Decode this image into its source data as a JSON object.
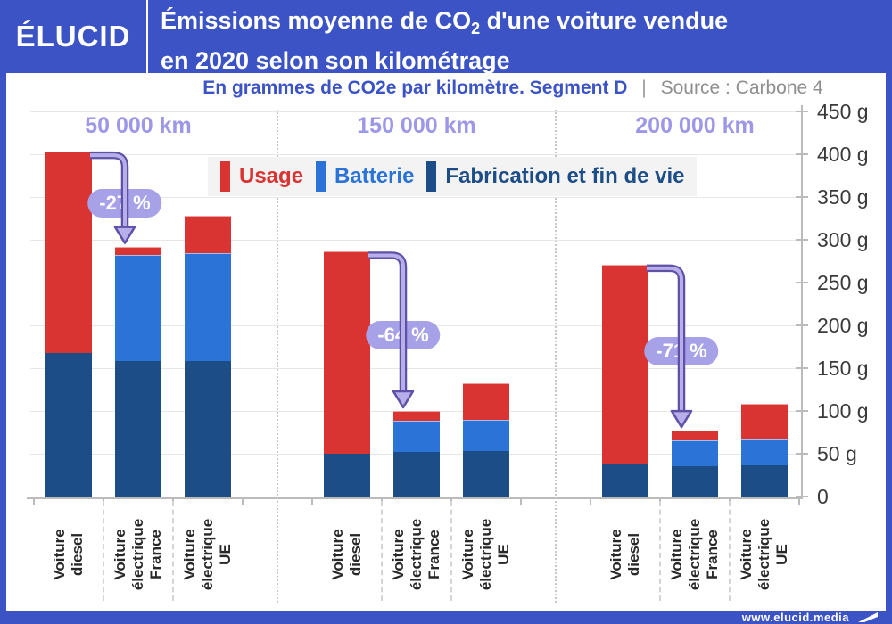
{
  "header": {
    "logo": "ÉLUCID",
    "title": {
      "line1_pre": "Émissions moyenne de CO",
      "line1_sub": "2",
      "line1_post": " d'une voiture vendue",
      "line2": "en 2020 selon son kilométrage"
    }
  },
  "subtitle": {
    "left": "En grammes de CO2e par kilomètre. Segment D",
    "separator": "|",
    "source": "Source : Carbone 4"
  },
  "legend": [
    {
      "label": "Usage",
      "color": "#d93431"
    },
    {
      "label": "Batterie",
      "color": "#2b73d6"
    },
    {
      "label": "Fabrication et fin de vie",
      "color": "#1d4d87"
    }
  ],
  "footer": {
    "url": "www.elucid.media",
    "icon": "elucid-flag-icon"
  },
  "colors": {
    "frame": "#3b53c5",
    "usage": "#d93431",
    "batterie": "#2b73d6",
    "fabrication": "#1d4d87",
    "group_label": "#9d97e8",
    "badge_bg": "#a7a1e8",
    "arrow_dark": "#5f51a6",
    "arrow_light": "#b7afe9",
    "legend_bg": "#f3f3f3"
  },
  "chart_data": {
    "type": "bar",
    "stacked": true,
    "title": "Émissions moyenne de CO2 d'une voiture vendue en 2020 selon son kilométrage",
    "unit": "grammes de CO2e par kilomètre",
    "source": "Carbone 4",
    "ylim": [
      0,
      450
    ],
    "y_ticks": [
      "0",
      "50 g",
      "100 g",
      "150 g",
      "200 g",
      "250 g",
      "300 g",
      "350 g",
      "400 g",
      "450 g"
    ],
    "series_order": [
      "fabrication",
      "batterie",
      "usage"
    ],
    "series_names": {
      "usage": "Usage",
      "batterie": "Batterie",
      "fabrication": "Fabrication et fin de vie"
    },
    "groups": [
      {
        "label": "50 000 km",
        "reduction_badge": "-27 %",
        "bars": [
          {
            "category_lines": [
              "Voiture",
              "diesel"
            ],
            "fabrication": 168,
            "batterie": 0,
            "usage": 235,
            "total": 403
          },
          {
            "category_lines": [
              "Voiture",
              "électrique",
              "France"
            ],
            "fabrication": 158,
            "batterie": 124,
            "usage": 10,
            "total": 292
          },
          {
            "category_lines": [
              "Voiture",
              "électrique",
              "UE"
            ],
            "fabrication": 158,
            "batterie": 126,
            "usage": 44,
            "total": 328
          }
        ]
      },
      {
        "label": "150 000 km",
        "reduction_badge": "-64 %",
        "bars": [
          {
            "category_lines": [
              "Voiture",
              "diesel"
            ],
            "fabrication": 50,
            "batterie": 0,
            "usage": 236,
            "total": 286
          },
          {
            "category_lines": [
              "Voiture",
              "électrique",
              "France"
            ],
            "fabrication": 52,
            "batterie": 37,
            "usage": 11,
            "total": 100
          },
          {
            "category_lines": [
              "Voiture",
              "électrique",
              "UE"
            ],
            "fabrication": 53,
            "batterie": 37,
            "usage": 42,
            "total": 132
          }
        ]
      },
      {
        "label": "200 000 km",
        "reduction_badge": "-71 %",
        "bars": [
          {
            "category_lines": [
              "Voiture",
              "diesel"
            ],
            "fabrication": 37,
            "batterie": 0,
            "usage": 234,
            "total": 271
          },
          {
            "category_lines": [
              "Voiture",
              "électrique",
              "France"
            ],
            "fabrication": 35,
            "batterie": 31,
            "usage": 11,
            "total": 77
          },
          {
            "category_lines": [
              "Voiture",
              "électrique",
              "UE"
            ],
            "fabrication": 36,
            "batterie": 31,
            "usage": 41,
            "total": 108
          }
        ]
      }
    ]
  }
}
